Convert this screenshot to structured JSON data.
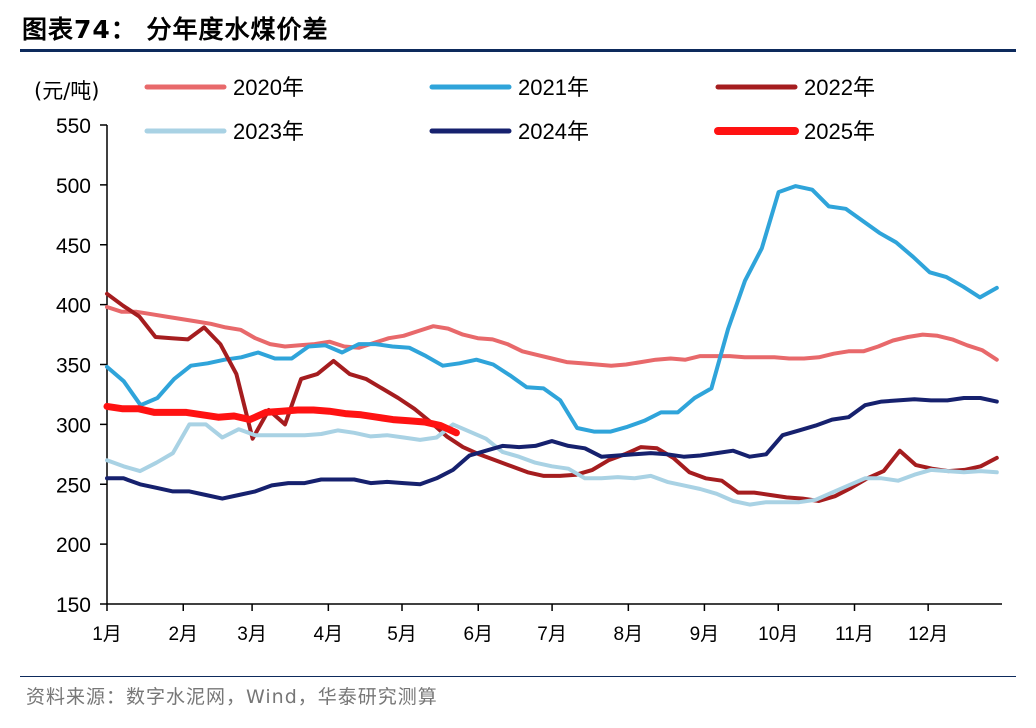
{
  "header": {
    "title": "图表74：  分年度水煤价差"
  },
  "footer": {
    "source": "资料来源：数字水泥网，Wind，华泰研究测算"
  },
  "chart_data": {
    "type": "line",
    "unit_label": "(元/吨)",
    "ylim": [
      150,
      550
    ],
    "yticks": [
      150,
      200,
      250,
      300,
      350,
      400,
      450,
      500,
      550
    ],
    "xlim": [
      0,
      52
    ],
    "x_ticks": [
      {
        "label": "1月",
        "x": 0
      },
      {
        "label": "2月",
        "x": 4.43
      },
      {
        "label": "3月",
        "x": 8.43
      },
      {
        "label": "4月",
        "x": 12.86
      },
      {
        "label": "5月",
        "x": 17.14
      },
      {
        "label": "6月",
        "x": 21.57
      },
      {
        "label": "7月",
        "x": 25.86
      },
      {
        "label": "8月",
        "x": 30.29
      },
      {
        "label": "9月",
        "x": 34.71
      },
      {
        "label": "10月",
        "x": 39.0
      },
      {
        "label": "11月",
        "x": 43.43
      },
      {
        "label": "12月",
        "x": 47.71
      }
    ],
    "legend_position": "top",
    "series": [
      {
        "name": "2020年",
        "color": "#e8696b",
        "width": 4,
        "values": [
          398,
          394,
          394,
          392,
          390,
          388,
          386,
          384,
          381,
          379,
          372,
          367,
          365,
          366,
          367,
          369,
          365,
          364,
          368,
          372,
          374,
          378,
          382,
          380,
          375,
          372,
          371,
          367,
          361,
          358,
          355,
          352,
          351,
          350,
          349,
          350,
          352,
          354,
          355,
          354,
          357,
          357,
          357,
          356,
          356,
          356,
          355,
          355,
          356,
          359,
          361,
          361,
          365,
          370,
          373,
          375,
          374,
          371,
          366,
          362,
          354
        ]
      },
      {
        "name": "2021年",
        "color": "#2fa4da",
        "width": 4,
        "values": [
          348,
          336,
          316,
          322,
          338,
          349,
          351,
          354,
          356,
          360,
          355,
          355,
          365,
          366,
          360,
          367,
          367,
          365,
          364,
          357,
          349,
          351,
          354,
          350,
          341,
          331,
          330,
          320,
          297,
          294,
          294,
          298,
          303,
          310,
          310,
          322,
          330,
          380,
          420,
          447,
          494,
          499,
          496,
          482,
          480,
          470,
          460,
          452,
          440,
          427,
          423,
          415,
          406,
          414
        ]
      },
      {
        "name": "2022年",
        "color": "#a51d1f",
        "width": 4,
        "values": [
          409,
          399,
          390,
          373,
          372,
          371,
          381,
          367,
          342,
          288,
          312,
          300,
          338,
          342,
          353,
          342,
          338,
          330,
          322,
          313,
          302,
          290,
          281,
          275,
          270,
          265,
          260,
          257,
          257,
          258,
          262,
          270,
          275,
          281,
          280,
          272,
          260,
          255,
          253,
          243,
          243,
          241,
          239,
          238,
          236,
          240,
          247,
          255,
          261,
          278,
          266,
          263,
          261,
          262,
          265,
          272
        ]
      },
      {
        "name": "2023年",
        "color": "#a9d2e4",
        "width": 4,
        "values": [
          270,
          265,
          261,
          268,
          276,
          300,
          300,
          289,
          296,
          291,
          291,
          291,
          291,
          292,
          295,
          293,
          290,
          291,
          289,
          287,
          289,
          300,
          294,
          288,
          277,
          273,
          268,
          265,
          263,
          255,
          255,
          256,
          255,
          257,
          252,
          249,
          246,
          242,
          236,
          233,
          235,
          235,
          235,
          237,
          243,
          249,
          255,
          255,
          253,
          258,
          262,
          261,
          260,
          261,
          260
        ]
      },
      {
        "name": "2024年",
        "color": "#16216e",
        "width": 4,
        "values": [
          255,
          255,
          250,
          247,
          244,
          244,
          241,
          238,
          241,
          244,
          249,
          251,
          251,
          254,
          254,
          254,
          251,
          252,
          251,
          250,
          255,
          262,
          274,
          278,
          282,
          281,
          282,
          286,
          282,
          280,
          273,
          274,
          275,
          276,
          275,
          273,
          274,
          276,
          278,
          273,
          275,
          291,
          295,
          299,
          304,
          306,
          316,
          319,
          320,
          321,
          320,
          320,
          322,
          322,
          319
        ]
      },
      {
        "name": "2025年",
        "color": "#ff1212",
        "width": 7,
        "values": [
          315,
          313,
          313,
          310,
          310,
          310,
          308,
          306,
          307,
          304,
          310,
          311,
          312,
          312,
          311,
          309,
          308,
          306,
          304,
          303,
          302,
          299,
          293
        ]
      }
    ],
    "series_x_end": [
      51.7,
      51.7,
      51.7,
      51.7,
      51.7,
      20.3
    ]
  }
}
